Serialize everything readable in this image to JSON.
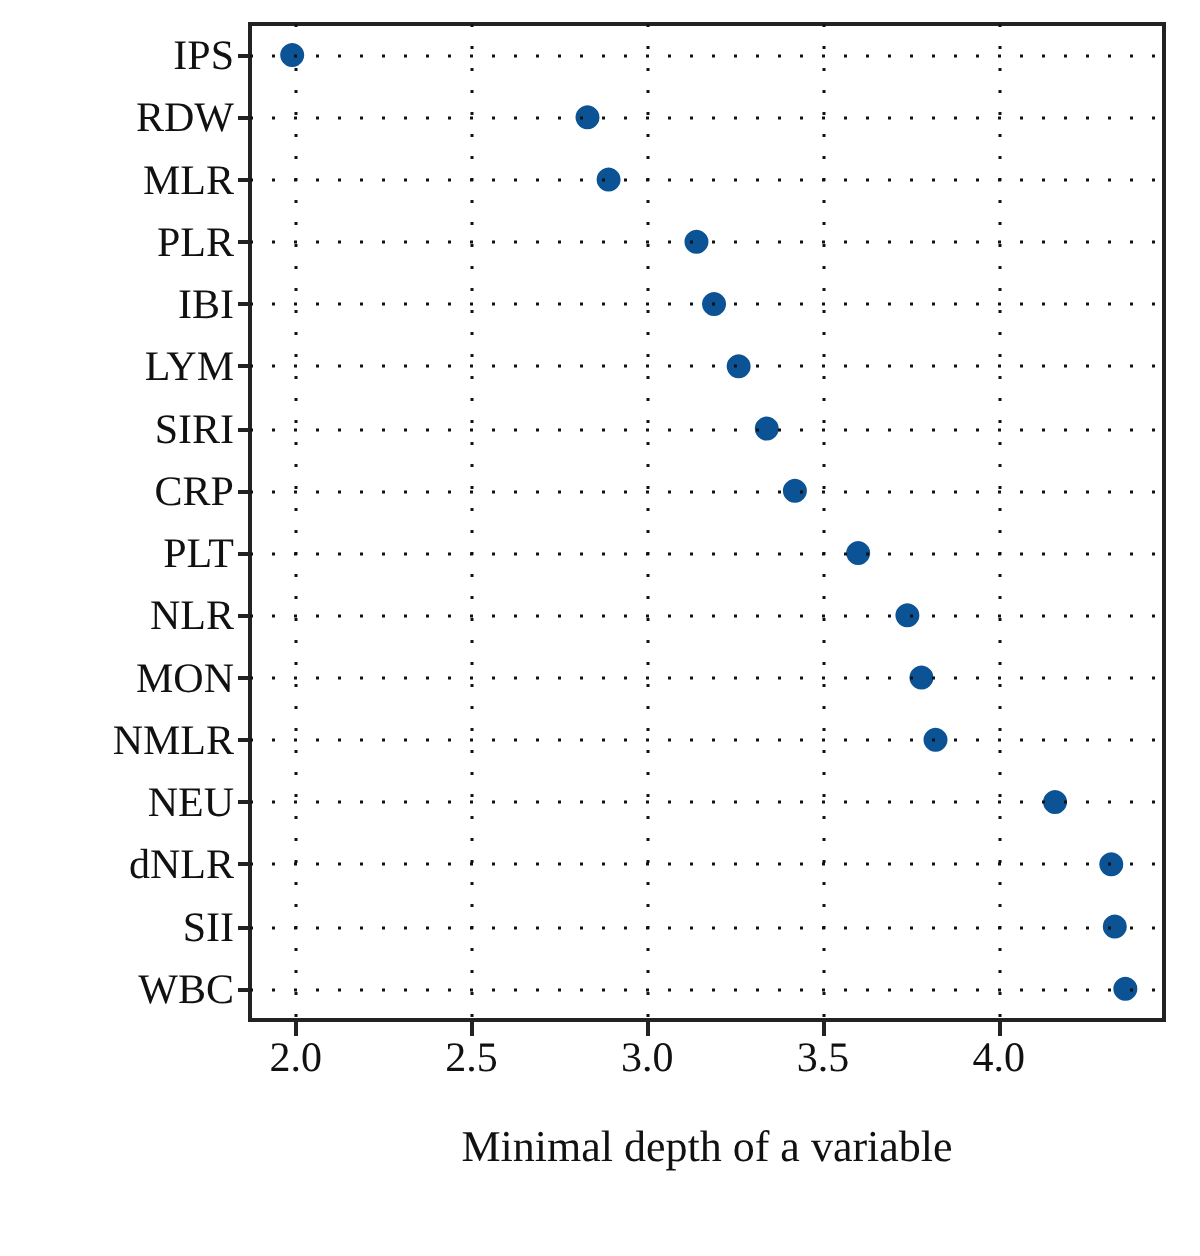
{
  "chart_data": {
    "type": "scatter",
    "xlabel": "Minimal depth of a variable",
    "categories": [
      "IPS",
      "RDW",
      "MLR",
      "PLR",
      "IBI",
      "LYM",
      "SIRI",
      "CRP",
      "PLT",
      "NLR",
      "MON",
      "NMLR",
      "NEU",
      "dNLR",
      "SII",
      "WBC"
    ],
    "values": [
      1.99,
      2.83,
      2.89,
      3.14,
      3.19,
      3.26,
      3.34,
      3.42,
      3.6,
      3.74,
      3.78,
      3.82,
      4.16,
      4.32,
      4.33,
      4.36
    ],
    "color": "#0b5394",
    "marker": "circle",
    "orientation": "horizontal",
    "xlim": [
      1.87,
      4.47
    ],
    "xticks": [
      {
        "value": 2,
        "label": "2.0"
      },
      2.5,
      {
        "value": 3,
        "label": "3.0"
      },
      3.5,
      {
        "value": 4,
        "label": "4.0"
      }
    ],
    "grid": true
  }
}
